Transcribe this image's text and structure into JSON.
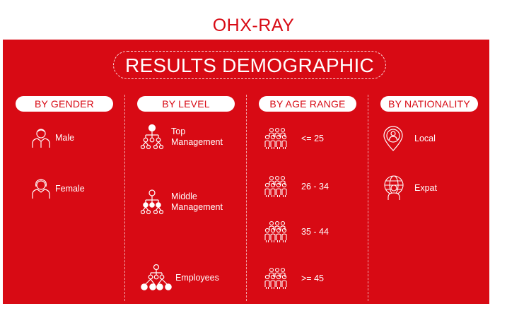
{
  "brand": "OHX-RAY",
  "title": "RESULTS DEMOGRAPHIC",
  "colors": {
    "background": "#d80a14",
    "text": "#ffffff",
    "pill_text": "#d80a14"
  },
  "columns": [
    {
      "header": "BY GENDER",
      "items": [
        {
          "label": "Male",
          "icon": "male-person-icon"
        },
        {
          "label": "Female",
          "icon": "female-person-icon"
        }
      ]
    },
    {
      "header": "BY LEVEL",
      "items": [
        {
          "label_line1": "Top",
          "label_line2": "Management",
          "icon": "org-chart-top-icon"
        },
        {
          "label_line1": "Middle",
          "label_line2": "Management",
          "icon": "org-chart-middle-icon"
        },
        {
          "label": "Employees",
          "icon": "org-chart-bottom-icon"
        }
      ]
    },
    {
      "header": "BY AGE RANGE",
      "items": [
        {
          "label": "<= 25",
          "icon": "people-group-icon"
        },
        {
          "label": "26 - 34",
          "icon": "people-group-icon"
        },
        {
          "label": "35 - 44",
          "icon": "people-group-icon"
        },
        {
          "label": ">= 45",
          "icon": "people-group-icon"
        }
      ]
    },
    {
      "header": "BY NATIONALITY",
      "items": [
        {
          "label": "Local",
          "icon": "location-person-icon"
        },
        {
          "label": "Expat",
          "icon": "globe-person-icon"
        }
      ]
    }
  ]
}
